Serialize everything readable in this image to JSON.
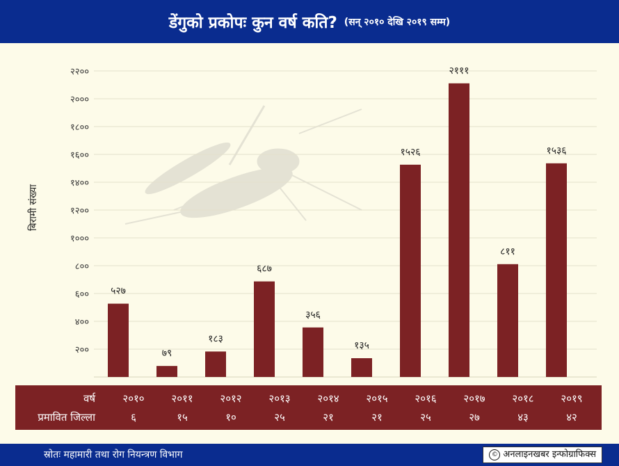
{
  "header": {
    "title": "डेंगुको प्रकोपः कुन वर्ष कति?",
    "subtitle": "(सन् २०१० देखि २०१९ सम्म)"
  },
  "chart_data": {
    "type": "bar",
    "title": "डेंगुको प्रकोपः कुन वर्ष कति?",
    "subtitle": "(सन् २०१० देखि २०१९ सम्म)",
    "ylabel": "बिरामी संख्या",
    "xlabel": "वर्ष",
    "categories": [
      "२०१०",
      "२०११",
      "२०१२",
      "२०१३",
      "२०१४",
      "२०१५",
      "२०१६",
      "२०१७",
      "२०१८",
      "२०१९"
    ],
    "values": [
      527,
      79,
      183,
      687,
      356,
      135,
      1526,
      2111,
      811,
      1536
    ],
    "data_labels": [
      "५२७",
      "७९",
      "१८३",
      "६८७",
      "३५६",
      "१३५",
      "१५२६",
      "२१११",
      "८११",
      "१५३६"
    ],
    "y_ticks": [
      200,
      400,
      600,
      800,
      1000,
      1200,
      1400,
      1600,
      1800,
      2000,
      2200
    ],
    "y_tick_labels": [
      "२००",
      "४००",
      "६००",
      "८००",
      "१०००",
      "१२००",
      "१४००",
      "१६००",
      "१८००",
      "२०००",
      "२२००"
    ],
    "ylim": [
      0,
      2200
    ],
    "grid": true,
    "bar_color": "#7c2224"
  },
  "table": {
    "year_label": "वर्ष",
    "district_label": "प्रमावित जिल्ला",
    "years": [
      "२०१०",
      "२०११",
      "२०१२",
      "२०१३",
      "२०१४",
      "२०१५",
      "२०१६",
      "२०१७",
      "२०१८",
      "२०१९"
    ],
    "districts": [
      "६",
      "१५",
      "१०",
      "२५",
      "२१",
      "२१",
      "२५",
      "२७",
      "४३",
      "४२"
    ]
  },
  "footer": {
    "source": "स्रोतः महामारी तथा रोग नियन्त्रण विभाग",
    "credit": "अनलाइनखबर इन्फोग्राफिक्स",
    "copyright_symbol": "©"
  }
}
